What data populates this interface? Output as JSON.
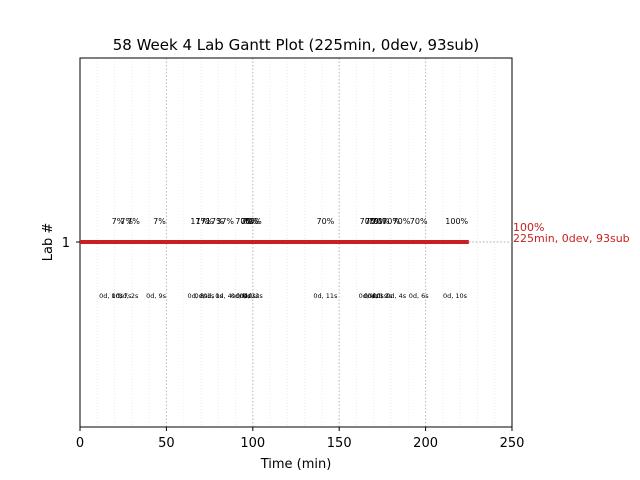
{
  "chart_data": {
    "type": "gantt",
    "title": "58 Week 4 Lab Gantt Plot (225min, 0dev, 93sub)",
    "xlabel": "Time (min)",
    "ylabel": "Lab #",
    "xlim": [
      0,
      250
    ],
    "x_ticks": [
      "0",
      "50",
      "100",
      "150",
      "200",
      "250"
    ],
    "x_tick_values": [
      0,
      50,
      100,
      150,
      200,
      250
    ],
    "y_tick_label": "1",
    "grid": "vertical dotted",
    "bar_color": "#c8201e",
    "bar": {
      "start": 0,
      "end": 225
    },
    "end_label_pct": "100%",
    "end_label_detail": "225min, 0dev, 93sub",
    "upper_annotations": [
      {
        "x": 22,
        "text": "7%"
      },
      {
        "x": 27,
        "text": "7%"
      },
      {
        "x": 31,
        "text": "7%"
      },
      {
        "x": 46,
        "text": "7%"
      },
      {
        "x": 69,
        "text": "17%"
      },
      {
        "x": 72,
        "text": "17%"
      },
      {
        "x": 78,
        "text": "17%"
      },
      {
        "x": 84,
        "text": "37%"
      },
      {
        "x": 95,
        "text": "70%"
      },
      {
        "x": 98,
        "text": "70%"
      },
      {
        "x": 99,
        "text": "70%"
      },
      {
        "x": 100,
        "text": "70%"
      },
      {
        "x": 142,
        "text": "70%"
      },
      {
        "x": 167,
        "text": "70%"
      },
      {
        "x": 170,
        "text": "70%"
      },
      {
        "x": 172,
        "text": "70%"
      },
      {
        "x": 174,
        "text": "70%"
      },
      {
        "x": 180,
        "text": "70%"
      },
      {
        "x": 186,
        "text": "70%"
      },
      {
        "x": 196,
        "text": "70%"
      },
      {
        "x": 218,
        "text": "100%"
      }
    ],
    "lower_annotations": [
      {
        "x": 18,
        "text": "0d, 10s"
      },
      {
        "x": 24,
        "text": "0d, 7s"
      },
      {
        "x": 28,
        "text": "0d, 2s"
      },
      {
        "x": 44,
        "text": "0d, 9s"
      },
      {
        "x": 68,
        "text": "0d, 8s"
      },
      {
        "x": 72,
        "text": "0d, 1s"
      },
      {
        "x": 77,
        "text": "0d, 1s"
      },
      {
        "x": 84,
        "text": "0d, 4s"
      },
      {
        "x": 93,
        "text": "0d, 4s"
      },
      {
        "x": 96,
        "text": "0d, 0s"
      },
      {
        "x": 98,
        "text": "0d, 1s"
      },
      {
        "x": 100,
        "text": "0d, 2s"
      },
      {
        "x": 142,
        "text": "0d, 11s"
      },
      {
        "x": 167,
        "text": "0d, 4s"
      },
      {
        "x": 170,
        "text": "0d, 0s"
      },
      {
        "x": 172,
        "text": "0d, 1s"
      },
      {
        "x": 175,
        "text": "0d, 3s"
      },
      {
        "x": 183,
        "text": "0d, 4s"
      },
      {
        "x": 196,
        "text": "0d, 6s"
      },
      {
        "x": 217,
        "text": "0d, 10s"
      }
    ]
  }
}
